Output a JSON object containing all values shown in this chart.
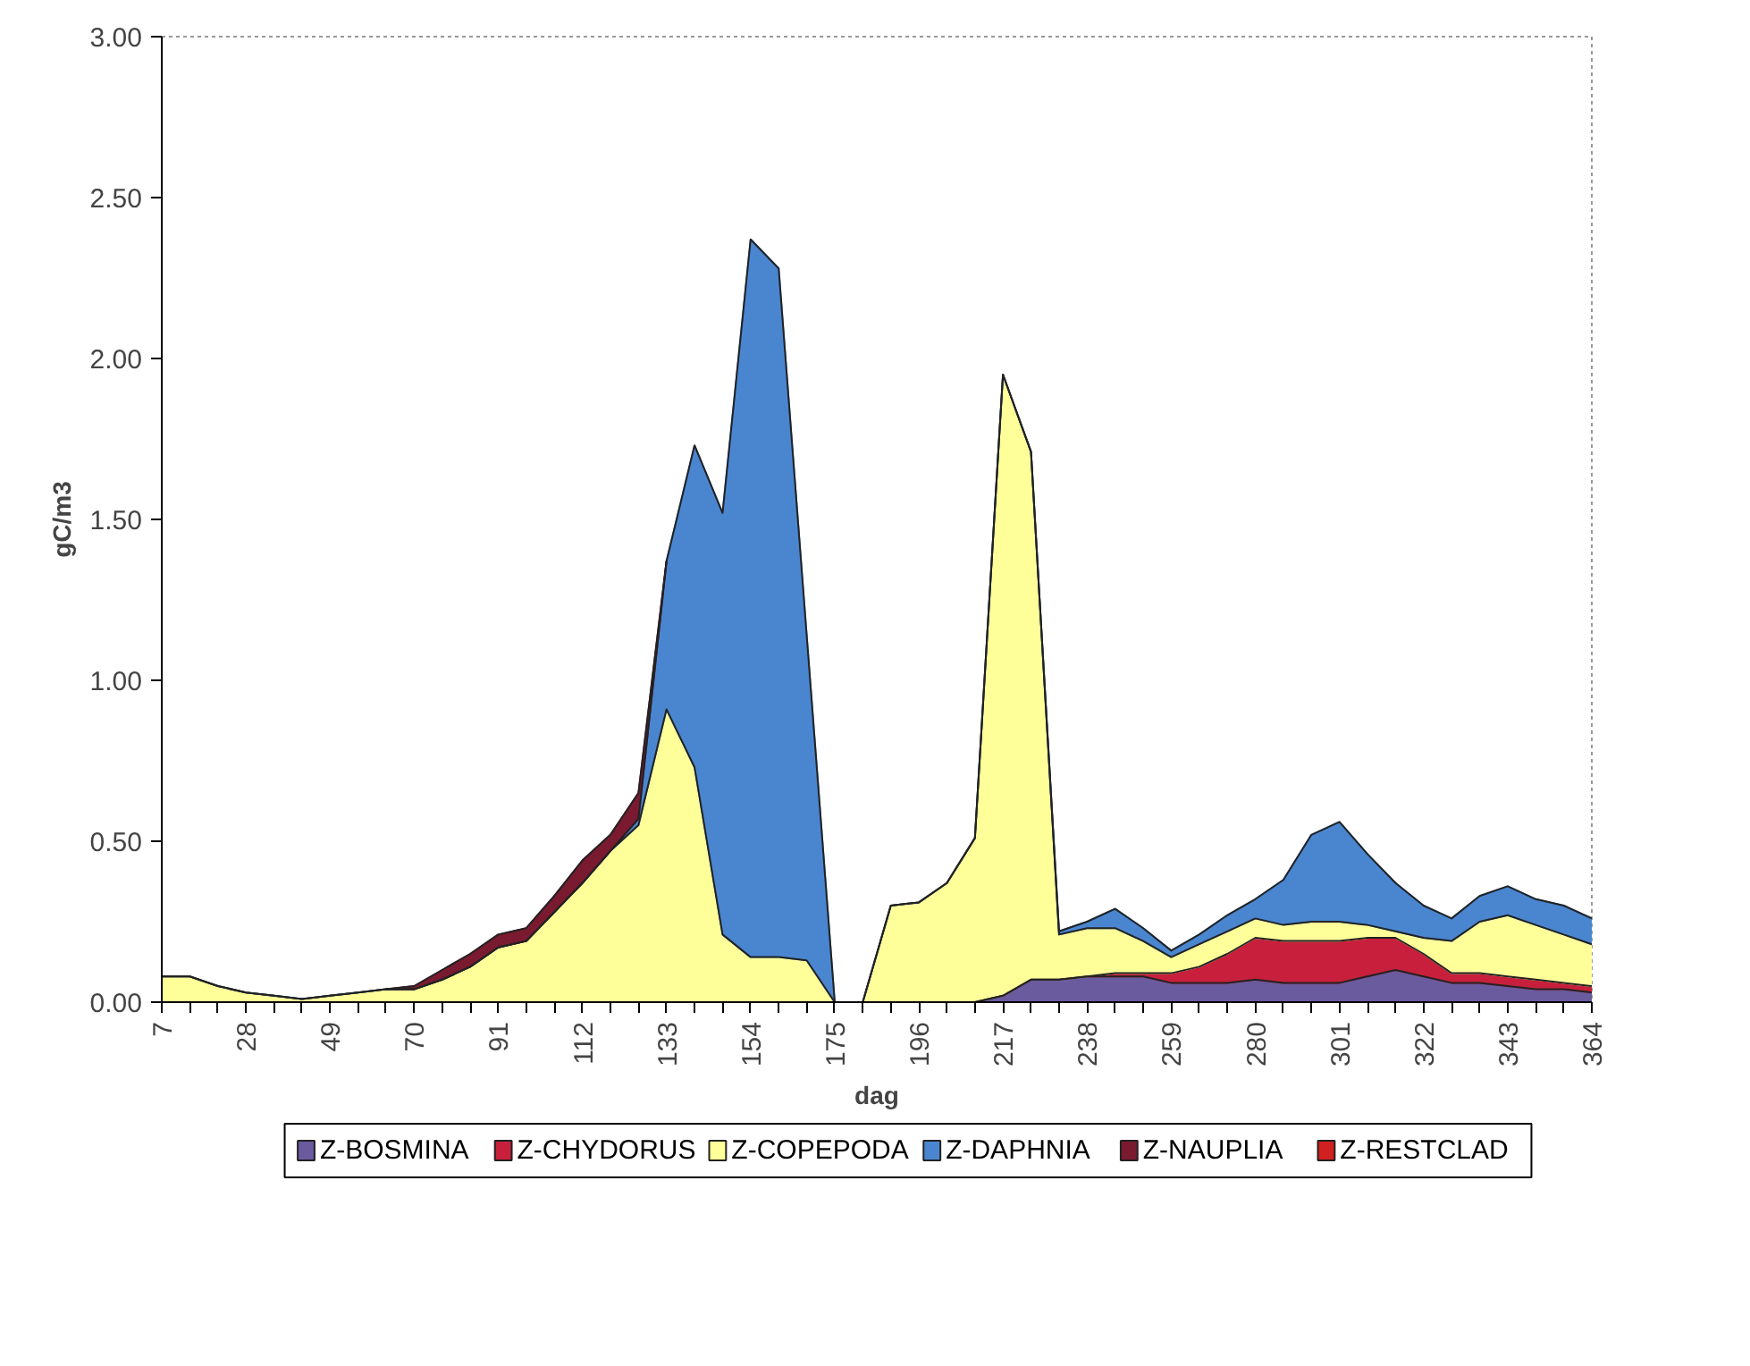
{
  "chart_data": {
    "type": "area",
    "stacked": true,
    "xlabel": "dag",
    "ylabel": "gC/m3",
    "categories": [
      "7",
      null,
      null,
      "28",
      null,
      null,
      "49",
      null,
      null,
      "70",
      null,
      null,
      "91",
      null,
      null,
      "112",
      null,
      null,
      "133",
      null,
      null,
      "154",
      null,
      null,
      "175",
      null,
      null,
      "196",
      null,
      null,
      "217",
      null,
      null,
      "238",
      null,
      null,
      "259",
      null,
      null,
      "280",
      null,
      null,
      "301",
      null,
      null,
      "322",
      null,
      null,
      "343",
      null,
      null,
      "364"
    ],
    "ylim": [
      0,
      3
    ],
    "yticks": [
      {
        "value": 0,
        "label": "0.00"
      },
      {
        "value": 0.5,
        "label": "0.50"
      },
      {
        "value": 1,
        "label": "1.00"
      },
      {
        "value": 1.5,
        "label": "1.50"
      },
      {
        "value": 2,
        "label": "2.00"
      },
      {
        "value": 2.5,
        "label": "2.50"
      },
      {
        "value": 3,
        "label": "3.00"
      }
    ],
    "grid": false,
    "legend": "bottom",
    "series": [
      {
        "name": "Z-BOSMINA",
        "color": "#6a5a9e",
        "values": [
          0,
          0,
          0,
          0,
          0,
          0,
          0,
          0,
          0,
          0,
          0,
          0,
          0,
          0,
          0,
          0,
          0,
          0,
          0,
          0,
          0,
          0,
          0,
          0,
          0,
          0,
          0,
          0,
          0,
          0,
          0.02,
          0.07,
          0.07,
          0.08,
          0.08,
          0.08,
          0.06,
          0.06,
          0.06,
          0.07,
          0.06,
          0.06,
          0.06,
          0.08,
          0.1,
          0.08,
          0.06,
          0.06,
          0.05,
          0.04,
          0.04,
          0.03
        ]
      },
      {
        "name": "Z-CHYDORUS",
        "color": "#c8203c",
        "values": [
          0,
          0,
          0,
          0,
          0,
          0,
          0,
          0,
          0,
          0,
          0,
          0,
          0,
          0,
          0,
          0,
          0,
          0,
          0,
          0,
          0,
          0,
          0,
          0,
          0,
          0,
          0,
          0,
          0,
          0,
          0,
          0,
          0,
          0,
          0.01,
          0.01,
          0.03,
          0.05,
          0.09,
          0.13,
          0.13,
          0.13,
          0.13,
          0.12,
          0.1,
          0.07,
          0.03,
          0.03,
          0.03,
          0.03,
          0.02,
          0.02
        ]
      },
      {
        "name": "Z-COPEPODA",
        "color": "#ffff99",
        "values": [
          0.08,
          0.08,
          0.05,
          0.03,
          0.02,
          0.01,
          0.02,
          0.03,
          0.04,
          0.04,
          0.07,
          0.11,
          0.17,
          0.19,
          0.28,
          0.37,
          0.47,
          0.55,
          0.91,
          0.73,
          0.21,
          0.14,
          0.14,
          0.13,
          0,
          0,
          0.3,
          0.31,
          0.37,
          0.51,
          1.93,
          1.64,
          0.14,
          0.15,
          0.14,
          0.1,
          0.05,
          0.07,
          0.07,
          0.06,
          0.05,
          0.06,
          0.06,
          0.04,
          0.02,
          0.05,
          0.1,
          0.16,
          0.19,
          0.17,
          0.15,
          0.13
        ]
      },
      {
        "name": "Z-DAPHNIA",
        "color": "#4a86d0",
        "values": [
          0,
          0,
          0,
          0,
          0,
          0,
          0,
          0,
          0,
          0,
          0,
          0,
          0,
          0,
          0,
          0,
          0,
          0.02,
          0.46,
          1.0,
          1.31,
          2.23,
          2.14,
          1.01,
          0,
          0,
          0,
          0,
          0,
          0,
          0,
          0,
          0.01,
          0.02,
          0.06,
          0.04,
          0.02,
          0.03,
          0.05,
          0.06,
          0.14,
          0.27,
          0.31,
          0.22,
          0.15,
          0.1,
          0.07,
          0.08,
          0.09,
          0.08,
          0.09,
          0.08
        ]
      },
      {
        "name": "Z-NAUPLIA",
        "color": "#7a1a30",
        "values": [
          null,
          null,
          null,
          null,
          null,
          null,
          null,
          null,
          0,
          0.01,
          0.03,
          0.04,
          0.04,
          0.04,
          0.05,
          0.07,
          0.05,
          0.08,
          0,
          null,
          null,
          null,
          null,
          null,
          null,
          null,
          null,
          null,
          null,
          null,
          null,
          null,
          null,
          null,
          null,
          null,
          null,
          null,
          null,
          null,
          null,
          null,
          null,
          null,
          null,
          null,
          null,
          null,
          null,
          null,
          null,
          null
        ]
      },
      {
        "name": "Z-RESTCLAD",
        "color": "#d02020",
        "values": [
          null,
          null,
          null,
          null,
          null,
          null,
          null,
          null,
          null,
          null,
          null,
          null,
          null,
          null,
          null,
          null,
          null,
          null,
          null,
          null,
          null,
          null,
          null,
          null,
          null,
          null,
          null,
          null,
          null,
          null,
          null,
          null,
          null,
          null,
          null,
          null,
          null,
          null,
          null,
          null,
          null,
          null,
          null,
          null,
          null,
          null,
          null,
          null,
          null,
          null,
          null,
          null
        ]
      }
    ]
  }
}
